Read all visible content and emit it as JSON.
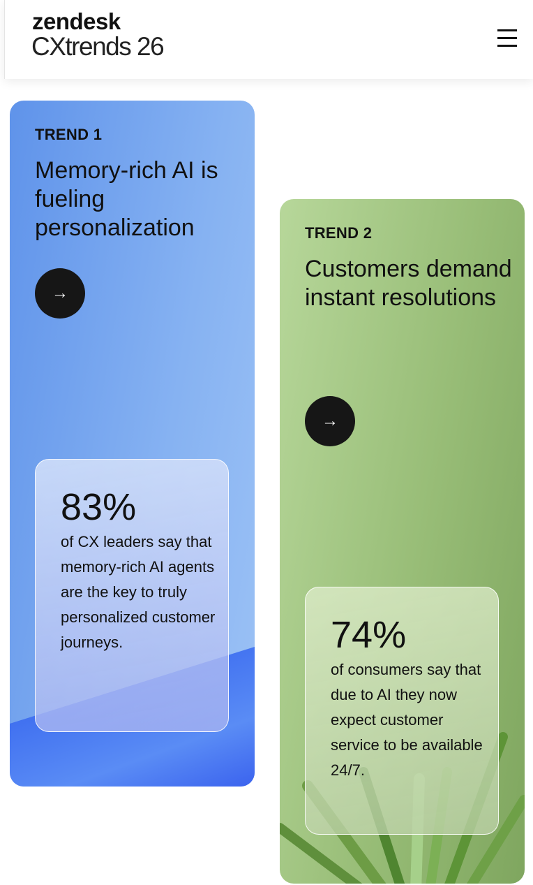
{
  "header": {
    "brand": "zendesk",
    "product": "CXtrends 26",
    "menu_icon": "hamburger-menu-icon"
  },
  "cards": [
    {
      "label": "TREND 1",
      "title": "Memory-rich AI is fueling personalization",
      "arrow": "→",
      "stat": "83%",
      "description": "of CX leaders say that memory-rich AI agents are the key to truly personalized customer journeys.",
      "color": "#6f9fee"
    },
    {
      "label": "TREND 2",
      "title": "Customers demand instant resolutions",
      "arrow": "→",
      "stat": "74%",
      "description": "of consumers say that due to AI they now expect customer service to be available 24/7.",
      "color": "#9dc07c"
    }
  ]
}
